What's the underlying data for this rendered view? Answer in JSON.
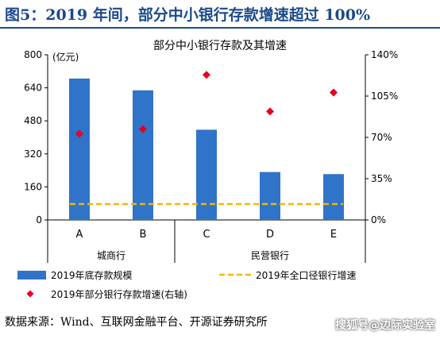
{
  "figure": {
    "title": "图5：2019 年间，部分中小银行存款增速超过 100%",
    "source": "数据来源：Wind、互联网金融平台、开源证券研究所",
    "watermark": "搜狐号@边际实验室"
  },
  "chart_data": {
    "type": "bar",
    "title": "部分中小银行存款及其增速",
    "categories": [
      "A",
      "B",
      "C",
      "D",
      "E"
    ],
    "groups": [
      {
        "label": "城商行",
        "categories": [
          "A",
          "B"
        ]
      },
      {
        "label": "民营银行",
        "categories": [
          "C",
          "D",
          "E"
        ]
      }
    ],
    "y_left": {
      "unit": "(亿元)",
      "ylim": [
        0,
        800
      ],
      "ticks": [
        "0",
        "160",
        "320",
        "480",
        "640",
        "800"
      ]
    },
    "y_right": {
      "ylim": [
        0,
        140
      ],
      "ticks": [
        "0%",
        "35%",
        "70%",
        "105%",
        "140%"
      ]
    },
    "series": [
      {
        "name": "2019年底存款规模",
        "kind": "bar",
        "axis": "left",
        "color": "#2f74c8",
        "values": [
          685,
          628,
          437,
          232,
          222
        ]
      },
      {
        "name": "2019年部分银行存款增速(右轴)",
        "kind": "scatter",
        "axis": "right",
        "color": "#e6001e",
        "values": [
          73,
          77,
          123,
          92,
          108
        ]
      },
      {
        "name": "2019年全口径银行增速",
        "kind": "line",
        "axis": "right",
        "color": "#f2b705",
        "values": [
          13.5,
          13.5,
          13.5,
          13.5,
          13.5
        ]
      }
    ],
    "legend_position": "bottom",
    "grid": false
  }
}
